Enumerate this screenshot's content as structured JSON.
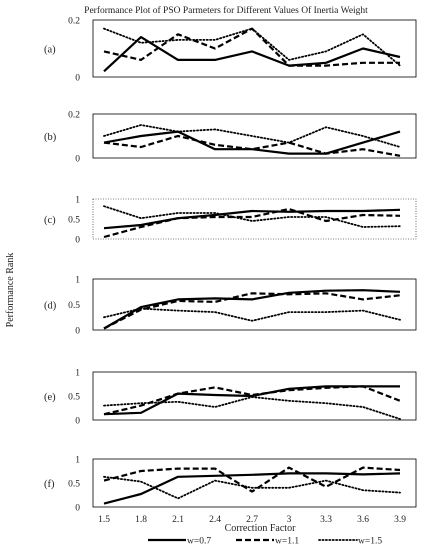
{
  "chart_data": {
    "type": "line",
    "title": "Performance Plot of PSO Parmeters for Different Values Of Inertia Weight",
    "xlabel": "Correction Factor",
    "ylabel": "Performance Rank",
    "x": [
      1.5,
      1.8,
      2.1,
      2.4,
      2.7,
      3,
      3.3,
      3.6,
      3.9
    ],
    "x_tick_labels": [
      "1.5",
      "1.8",
      "2.1",
      "2.4",
      "2.7",
      "3",
      "3.3",
      "3.6",
      "3.9"
    ],
    "legend": {
      "placement": "bottom",
      "entries": [
        "w=0.7",
        "w=1.1",
        "w=1.5"
      ]
    },
    "series_styles": {
      "w=0.7": {
        "stroke": "#000000",
        "dash": "solid"
      },
      "w=1.1": {
        "stroke": "#000000",
        "dash": "dashed"
      },
      "w=1.5": {
        "stroke": "#000000",
        "dash": "dotted"
      }
    },
    "panels": [
      {
        "label": "(a)",
        "ylim": [
          0,
          0.2
        ],
        "yticks": [
          0,
          0.2
        ],
        "ytick_labels": [
          "0",
          "0.2"
        ],
        "series": [
          {
            "name": "w=0.7",
            "values": [
              0.02,
              0.14,
              0.06,
              0.06,
              0.09,
              0.04,
              0.05,
              0.1,
              0.07
            ]
          },
          {
            "name": "w=1.1",
            "values": [
              0.09,
              0.06,
              0.15,
              0.1,
              0.17,
              0.04,
              0.04,
              0.05,
              0.05
            ]
          },
          {
            "name": "w=1.5",
            "values": [
              0.17,
              0.12,
              0.13,
              0.13,
              0.17,
              0.06,
              0.09,
              0.15,
              0.04
            ]
          }
        ]
      },
      {
        "label": "(b)",
        "ylim": [
          0,
          0.2
        ],
        "yticks": [
          0,
          0.2
        ],
        "ytick_labels": [
          "0",
          "0.2"
        ],
        "series": [
          {
            "name": "w=0.7",
            "values": [
              0.07,
              0.1,
              0.12,
              0.04,
              0.04,
              0.02,
              0.02,
              0.07,
              0.12
            ]
          },
          {
            "name": "w=1.1",
            "values": [
              0.07,
              0.05,
              0.1,
              0.06,
              0.04,
              0.07,
              0.02,
              0.04,
              0.01
            ]
          },
          {
            "name": "w=1.5",
            "values": [
              0.1,
              0.15,
              0.12,
              0.13,
              0.1,
              0.07,
              0.14,
              0.1,
              0.05
            ]
          }
        ]
      },
      {
        "label": "(c)",
        "ylim": [
          0,
          1
        ],
        "yticks": [
          0,
          0.5,
          1
        ],
        "ytick_labels": [
          "0",
          "0.5",
          "1"
        ],
        "series": [
          {
            "name": "w=0.7",
            "values": [
              0.27,
              0.35,
              0.52,
              0.6,
              0.7,
              0.68,
              0.7,
              0.7,
              0.73
            ]
          },
          {
            "name": "w=1.1",
            "values": [
              0.05,
              0.3,
              0.52,
              0.55,
              0.55,
              0.75,
              0.45,
              0.6,
              0.58
            ]
          },
          {
            "name": "w=1.5",
            "values": [
              0.82,
              0.52,
              0.65,
              0.65,
              0.45,
              0.55,
              0.55,
              0.3,
              0.32
            ]
          }
        ]
      },
      {
        "label": "(d)",
        "ylim": [
          0,
          1
        ],
        "yticks": [
          0,
          0.5,
          1
        ],
        "ytick_labels": [
          "0",
          "0.5",
          "1"
        ],
        "series": [
          {
            "name": "w=0.7",
            "values": [
              0.03,
              0.45,
              0.6,
              0.62,
              0.6,
              0.73,
              0.77,
              0.78,
              0.75
            ]
          },
          {
            "name": "w=1.1",
            "values": [
              0.03,
              0.4,
              0.57,
              0.55,
              0.72,
              0.7,
              0.72,
              0.6,
              0.68
            ]
          },
          {
            "name": "w=1.5",
            "values": [
              0.25,
              0.42,
              0.38,
              0.35,
              0.18,
              0.35,
              0.35,
              0.38,
              0.2
            ]
          }
        ]
      },
      {
        "label": "(e)",
        "ylim": [
          0,
          1
        ],
        "yticks": [
          0,
          0.5,
          1
        ],
        "ytick_labels": [
          "0",
          "0.5",
          "1"
        ],
        "series": [
          {
            "name": "w=0.7",
            "values": [
              0.12,
              0.15,
              0.55,
              0.52,
              0.5,
              0.65,
              0.7,
              0.7,
              0.7
            ]
          },
          {
            "name": "w=1.1",
            "values": [
              0.12,
              0.3,
              0.55,
              0.68,
              0.52,
              0.62,
              0.67,
              0.7,
              0.4
            ]
          },
          {
            "name": "w=1.5",
            "values": [
              0.3,
              0.35,
              0.38,
              0.27,
              0.48,
              0.4,
              0.35,
              0.27,
              0.02
            ]
          }
        ]
      },
      {
        "label": "(f)",
        "ylim": [
          0,
          1
        ],
        "yticks": [
          0,
          0.5,
          1
        ],
        "ytick_labels": [
          "0",
          "0.5",
          "1"
        ],
        "series": [
          {
            "name": "w=0.7",
            "values": [
              0.07,
              0.27,
              0.63,
              0.65,
              0.67,
              0.7,
              0.7,
              0.68,
              0.7
            ]
          },
          {
            "name": "w=1.1",
            "values": [
              0.55,
              0.75,
              0.8,
              0.8,
              0.32,
              0.82,
              0.42,
              0.82,
              0.77
            ]
          },
          {
            "name": "w=1.5",
            "values": [
              0.63,
              0.53,
              0.18,
              0.55,
              0.4,
              0.4,
              0.55,
              0.35,
              0.3
            ]
          }
        ]
      }
    ]
  }
}
